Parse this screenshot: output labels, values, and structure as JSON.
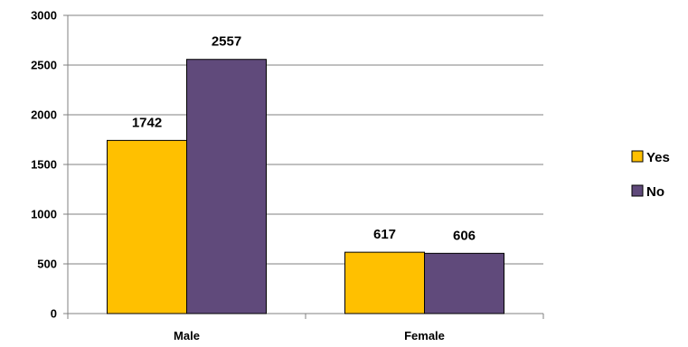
{
  "chart_data": {
    "type": "bar",
    "title": "",
    "xlabel": "",
    "ylabel": "",
    "categories": [
      "Male",
      "Female"
    ],
    "series": [
      {
        "name": "Yes",
        "values": [
          1742,
          617
        ],
        "color": "#FFC000"
      },
      {
        "name": "No",
        "values": [
          2557,
          606
        ],
        "color": "#604A7B"
      }
    ],
    "ylim": [
      0,
      3000
    ],
    "yticks": [
      0,
      500,
      1000,
      1500,
      2000,
      2500,
      3000
    ],
    "grid": true,
    "legend_position": "right"
  }
}
